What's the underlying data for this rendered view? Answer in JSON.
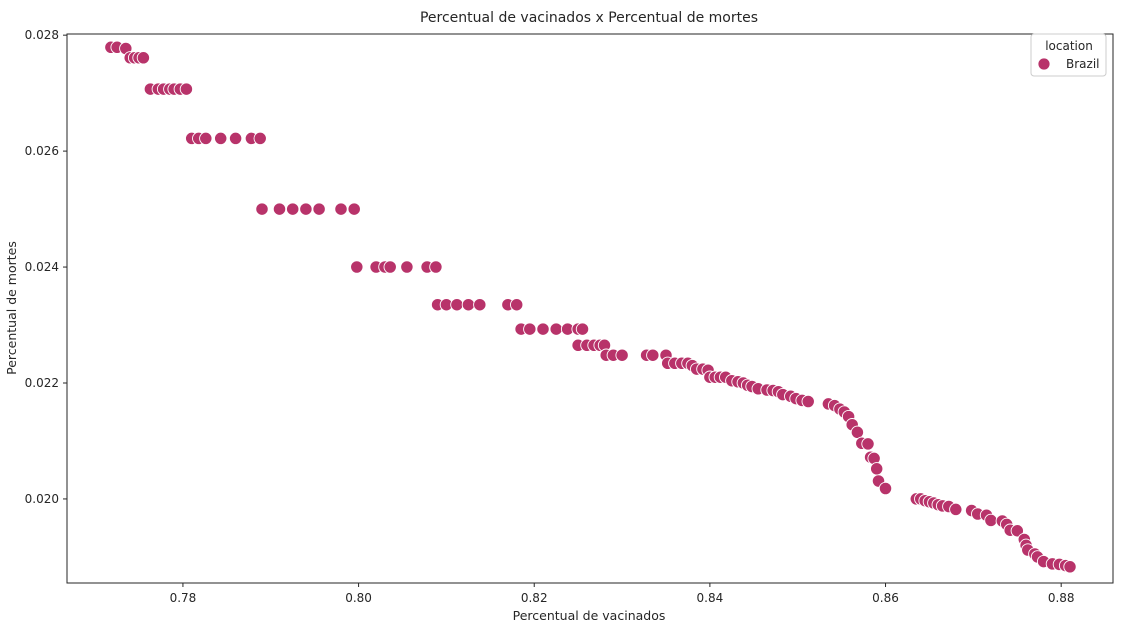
{
  "chart_data": {
    "type": "scatter",
    "title": "Percentual de vacinados x Percentual de mortes",
    "xlabel": "Percentual de vacinados",
    "ylabel": "Percentual de mortes",
    "xlim": [
      0.7668,
      0.8859
    ],
    "ylim": [
      0.01855,
      0.02802
    ],
    "xticks": [
      "0.78",
      "0.80",
      "0.82",
      "0.84",
      "0.86",
      "0.88"
    ],
    "yticks": [
      "0.020",
      "0.022",
      "0.024",
      "0.026",
      "0.028"
    ],
    "grid": false,
    "legend": {
      "title": "location",
      "placement": "top-right",
      "entries": [
        "Brazil"
      ]
    },
    "series": [
      {
        "name": "Brazil",
        "color": "#b8336a",
        "points": [
          [
            0.7718,
            0.02779
          ],
          [
            0.7725,
            0.02779
          ],
          [
            0.7735,
            0.02777
          ],
          [
            0.774,
            0.02761
          ],
          [
            0.7745,
            0.02761
          ],
          [
            0.775,
            0.02761
          ],
          [
            0.7755,
            0.02761
          ],
          [
            0.7763,
            0.02707
          ],
          [
            0.7772,
            0.02707
          ],
          [
            0.7778,
            0.02707
          ],
          [
            0.7785,
            0.02707
          ],
          [
            0.779,
            0.02707
          ],
          [
            0.7797,
            0.02707
          ],
          [
            0.7804,
            0.02707
          ],
          [
            0.781,
            0.02622
          ],
          [
            0.7818,
            0.02622
          ],
          [
            0.7826,
            0.02622
          ],
          [
            0.7843,
            0.02622
          ],
          [
            0.786,
            0.02622
          ],
          [
            0.7878,
            0.02622
          ],
          [
            0.7888,
            0.02622
          ],
          [
            0.789,
            0.025
          ],
          [
            0.791,
            0.025
          ],
          [
            0.7925,
            0.025
          ],
          [
            0.794,
            0.025
          ],
          [
            0.7955,
            0.025
          ],
          [
            0.798,
            0.025
          ],
          [
            0.7995,
            0.025
          ],
          [
            0.7998,
            0.024
          ],
          [
            0.802,
            0.024
          ],
          [
            0.803,
            0.024
          ],
          [
            0.8036,
            0.024
          ],
          [
            0.8055,
            0.024
          ],
          [
            0.8078,
            0.024
          ],
          [
            0.8088,
            0.024
          ],
          [
            0.809,
            0.02335
          ],
          [
            0.81,
            0.02335
          ],
          [
            0.8112,
            0.02335
          ],
          [
            0.8125,
            0.02335
          ],
          [
            0.8138,
            0.02335
          ],
          [
            0.817,
            0.02335
          ],
          [
            0.818,
            0.02335
          ],
          [
            0.8185,
            0.02293
          ],
          [
            0.8195,
            0.02293
          ],
          [
            0.821,
            0.02293
          ],
          [
            0.8225,
            0.02293
          ],
          [
            0.8238,
            0.02293
          ],
          [
            0.825,
            0.02293
          ],
          [
            0.8255,
            0.02293
          ],
          [
            0.825,
            0.02265
          ],
          [
            0.826,
            0.02265
          ],
          [
            0.8268,
            0.02265
          ],
          [
            0.8275,
            0.02265
          ],
          [
            0.828,
            0.02265
          ],
          [
            0.8282,
            0.02248
          ],
          [
            0.829,
            0.02248
          ],
          [
            0.83,
            0.02248
          ],
          [
            0.8328,
            0.02248
          ],
          [
            0.8335,
            0.02248
          ],
          [
            0.835,
            0.02248
          ],
          [
            0.8352,
            0.02234
          ],
          [
            0.836,
            0.02234
          ],
          [
            0.8368,
            0.02234
          ],
          [
            0.8375,
            0.02234
          ],
          [
            0.838,
            0.0223
          ],
          [
            0.8385,
            0.02224
          ],
          [
            0.8392,
            0.02224
          ],
          [
            0.8398,
            0.02222
          ],
          [
            0.84,
            0.0221
          ],
          [
            0.8406,
            0.0221
          ],
          [
            0.8412,
            0.0221
          ],
          [
            0.8418,
            0.0221
          ],
          [
            0.8425,
            0.02204
          ],
          [
            0.8432,
            0.02202
          ],
          [
            0.8438,
            0.022
          ],
          [
            0.8443,
            0.02196
          ],
          [
            0.8448,
            0.02194
          ],
          [
            0.8455,
            0.0219
          ],
          [
            0.8465,
            0.02188
          ],
          [
            0.8472,
            0.02187
          ],
          [
            0.8478,
            0.02185
          ],
          [
            0.8483,
            0.0218
          ],
          [
            0.8492,
            0.02177
          ],
          [
            0.8498,
            0.02173
          ],
          [
            0.8505,
            0.0217
          ],
          [
            0.8512,
            0.02168
          ],
          [
            0.8535,
            0.02164
          ],
          [
            0.8542,
            0.02161
          ],
          [
            0.8548,
            0.02155
          ],
          [
            0.8553,
            0.0215
          ],
          [
            0.8558,
            0.02142
          ],
          [
            0.8562,
            0.02128
          ],
          [
            0.8568,
            0.02115
          ],
          [
            0.8573,
            0.02096
          ],
          [
            0.858,
            0.02095
          ],
          [
            0.8583,
            0.02072
          ],
          [
            0.8587,
            0.0207
          ],
          [
            0.859,
            0.02052
          ],
          [
            0.8592,
            0.02031
          ],
          [
            0.86,
            0.02018
          ],
          [
            0.8635,
            0.02
          ],
          [
            0.864,
            0.02
          ],
          [
            0.8645,
            0.01997
          ],
          [
            0.865,
            0.01995
          ],
          [
            0.8655,
            0.01993
          ],
          [
            0.866,
            0.0199
          ],
          [
            0.8665,
            0.01988
          ],
          [
            0.8672,
            0.01987
          ],
          [
            0.868,
            0.01982
          ],
          [
            0.8698,
            0.0198
          ],
          [
            0.8705,
            0.01974
          ],
          [
            0.8715,
            0.01972
          ],
          [
            0.872,
            0.01963
          ],
          [
            0.8733,
            0.01962
          ],
          [
            0.8738,
            0.01956
          ],
          [
            0.8742,
            0.01946
          ],
          [
            0.875,
            0.01945
          ],
          [
            0.8758,
            0.0193
          ],
          [
            0.876,
            0.0192
          ],
          [
            0.8762,
            0.01912
          ],
          [
            0.877,
            0.01905
          ],
          [
            0.8773,
            0.019
          ],
          [
            0.878,
            0.01892
          ],
          [
            0.879,
            0.01888
          ],
          [
            0.8798,
            0.01887
          ],
          [
            0.8805,
            0.01885
          ],
          [
            0.881,
            0.01883
          ]
        ]
      }
    ]
  }
}
